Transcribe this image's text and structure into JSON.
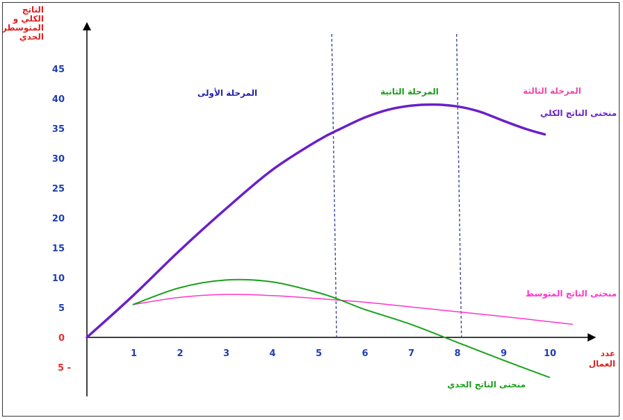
{
  "chart_data": {
    "type": "line",
    "title": "",
    "ylabel_lines": [
      "الناتج",
      "الكلي و",
      "المتوسطر",
      "الحدي"
    ],
    "xlabel_lines": [
      "عدد",
      "العمال"
    ],
    "x_ticks": [
      "1",
      "2",
      "3",
      "4",
      "5",
      "6",
      "7",
      "8",
      "9",
      "10"
    ],
    "y_ticks": [
      "45",
      "40",
      "35",
      "30",
      "25",
      "20",
      "15",
      "10",
      "5",
      "0",
      "5 -"
    ],
    "y_tick_values": [
      45,
      40,
      35,
      30,
      25,
      20,
      15,
      10,
      5,
      0,
      -5
    ],
    "x_range": [
      0,
      10.5
    ],
    "y_range": [
      -5,
      45
    ],
    "grid": false,
    "stage_dividers": [
      5.4,
      8.1
    ],
    "stages": [
      {
        "label": "المرحلة الأولى",
        "color": "#2222aa"
      },
      {
        "label": "المرحلة الثانية",
        "color": "#1a9a1a"
      },
      {
        "label": "المرحلة الثالثة",
        "color": "#ee44aa"
      }
    ],
    "series": [
      {
        "name": "منحنى الناتج الكلي",
        "color": "#6a1fc8",
        "x": [
          0,
          1,
          2,
          3,
          4,
          5,
          5.5,
          6,
          6.5,
          7,
          7.5,
          8,
          8.5,
          9,
          9.5,
          9.9
        ],
        "y": [
          0,
          7,
          14.5,
          21.5,
          28,
          33,
          35,
          36.8,
          38.1,
          38.8,
          39,
          38.7,
          37.8,
          36.3,
          34.9,
          34
        ]
      },
      {
        "name": "منحنى الناتج المتوسط",
        "color": "#ff33cc",
        "x": [
          1,
          2,
          3,
          4,
          5,
          6,
          7,
          8,
          9,
          10.5
        ],
        "y": [
          5.5,
          6.7,
          7.2,
          7,
          6.5,
          5.9,
          5.1,
          4.3,
          3.5,
          2.2
        ]
      },
      {
        "name": "منحنى الناتج الحدي",
        "color": "#1aa01a",
        "x": [
          1,
          2,
          3,
          4,
          5,
          5.5,
          6,
          7,
          8,
          9,
          10
        ],
        "y": [
          5.5,
          8.3,
          9.6,
          9.3,
          7.5,
          6.2,
          4.7,
          2.2,
          -0.8,
          -3.8,
          -6.7
        ]
      }
    ]
  }
}
